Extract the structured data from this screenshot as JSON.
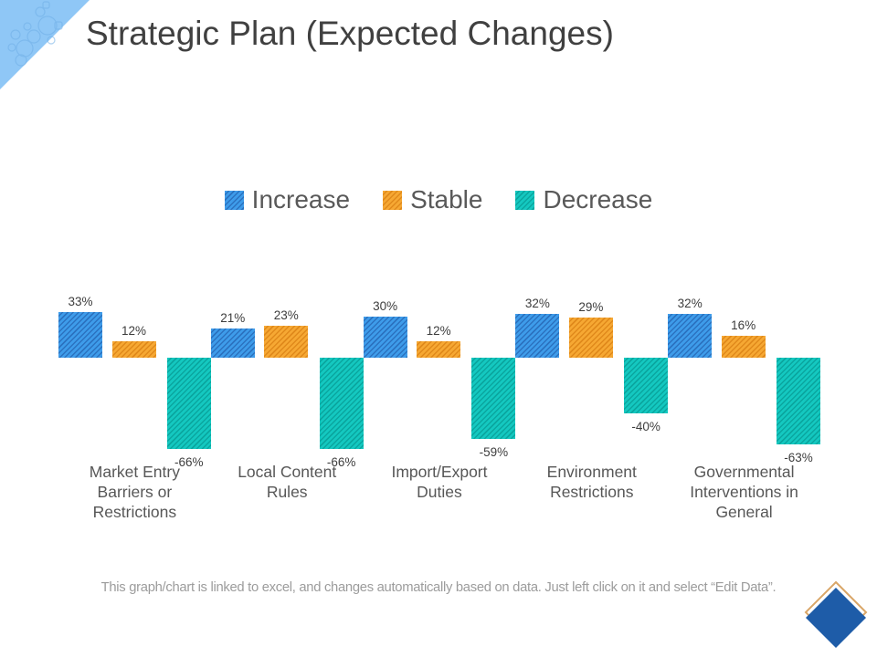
{
  "slide": {
    "title": "Strategic Plan (Expected Changes)",
    "footer": "This graph/chart is linked to excel, and changes automatically based on data. Just left click on it and select “Edit Data”."
  },
  "legend": {
    "items": [
      {
        "label": "Increase",
        "color": "#3E9CEA",
        "hatch": "#2B72C0"
      },
      {
        "label": "Stable",
        "color": "#F6A833",
        "hatch": "#E0891B"
      },
      {
        "label": "Decrease",
        "color": "#14C8C0",
        "hatch": "#0AA69F"
      }
    ]
  },
  "chart_data": {
    "type": "bar",
    "title": "",
    "categories": [
      "Market Entry Barriers or Restrictions",
      "Local Content Rules",
      "Import/Export Duties",
      "Environment Restrictions",
      "Governmental Interventions in General"
    ],
    "series": [
      {
        "name": "Increase",
        "color": "#3E9CEA",
        "hatch": "#2B72C0",
        "values": [
          33,
          21,
          30,
          32,
          32
        ]
      },
      {
        "name": "Stable",
        "color": "#F6A833",
        "hatch": "#E0891B",
        "values": [
          12,
          23,
          12,
          29,
          16
        ]
      },
      {
        "name": "Decrease",
        "color": "#14C8C0",
        "hatch": "#0AA69F",
        "values": [
          -66,
          -66,
          -59,
          -40,
          -63
        ]
      }
    ],
    "value_suffix": "%",
    "ylim": [
      -70,
      40
    ],
    "grid": false,
    "axes_visible": false,
    "legend_position": "top",
    "data_labels": true,
    "hatch_style": "diagonal"
  },
  "decorations": {
    "triangle_color": "#8FC7F6",
    "bubble_color": "#6FAEE6",
    "diamond_color": "#1E5CA8",
    "diamond_outline_color": "#D9A668"
  }
}
